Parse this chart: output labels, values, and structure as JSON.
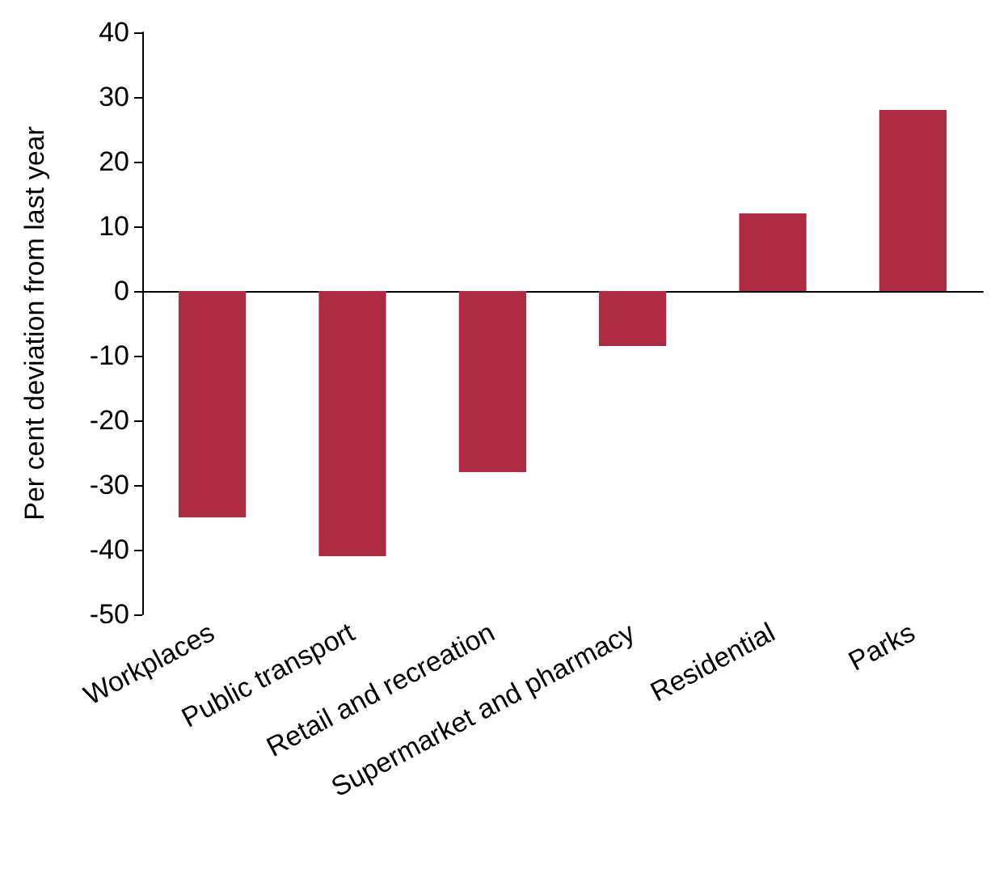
{
  "chart_data": {
    "type": "bar",
    "ylabel": "Per cent deviation from last year",
    "categories": [
      "Workplaces",
      "Public transport",
      "Retail and recreation",
      "Supermarket and pharmacy",
      "Residential",
      "Parks"
    ],
    "values": [
      -35,
      -41,
      -28,
      -8.5,
      12,
      28
    ],
    "color": "#ae2a40",
    "ylim": [
      -50,
      40
    ],
    "yticks": [
      -50,
      -40,
      -30,
      -20,
      -10,
      0,
      10,
      20,
      30,
      40
    ]
  }
}
